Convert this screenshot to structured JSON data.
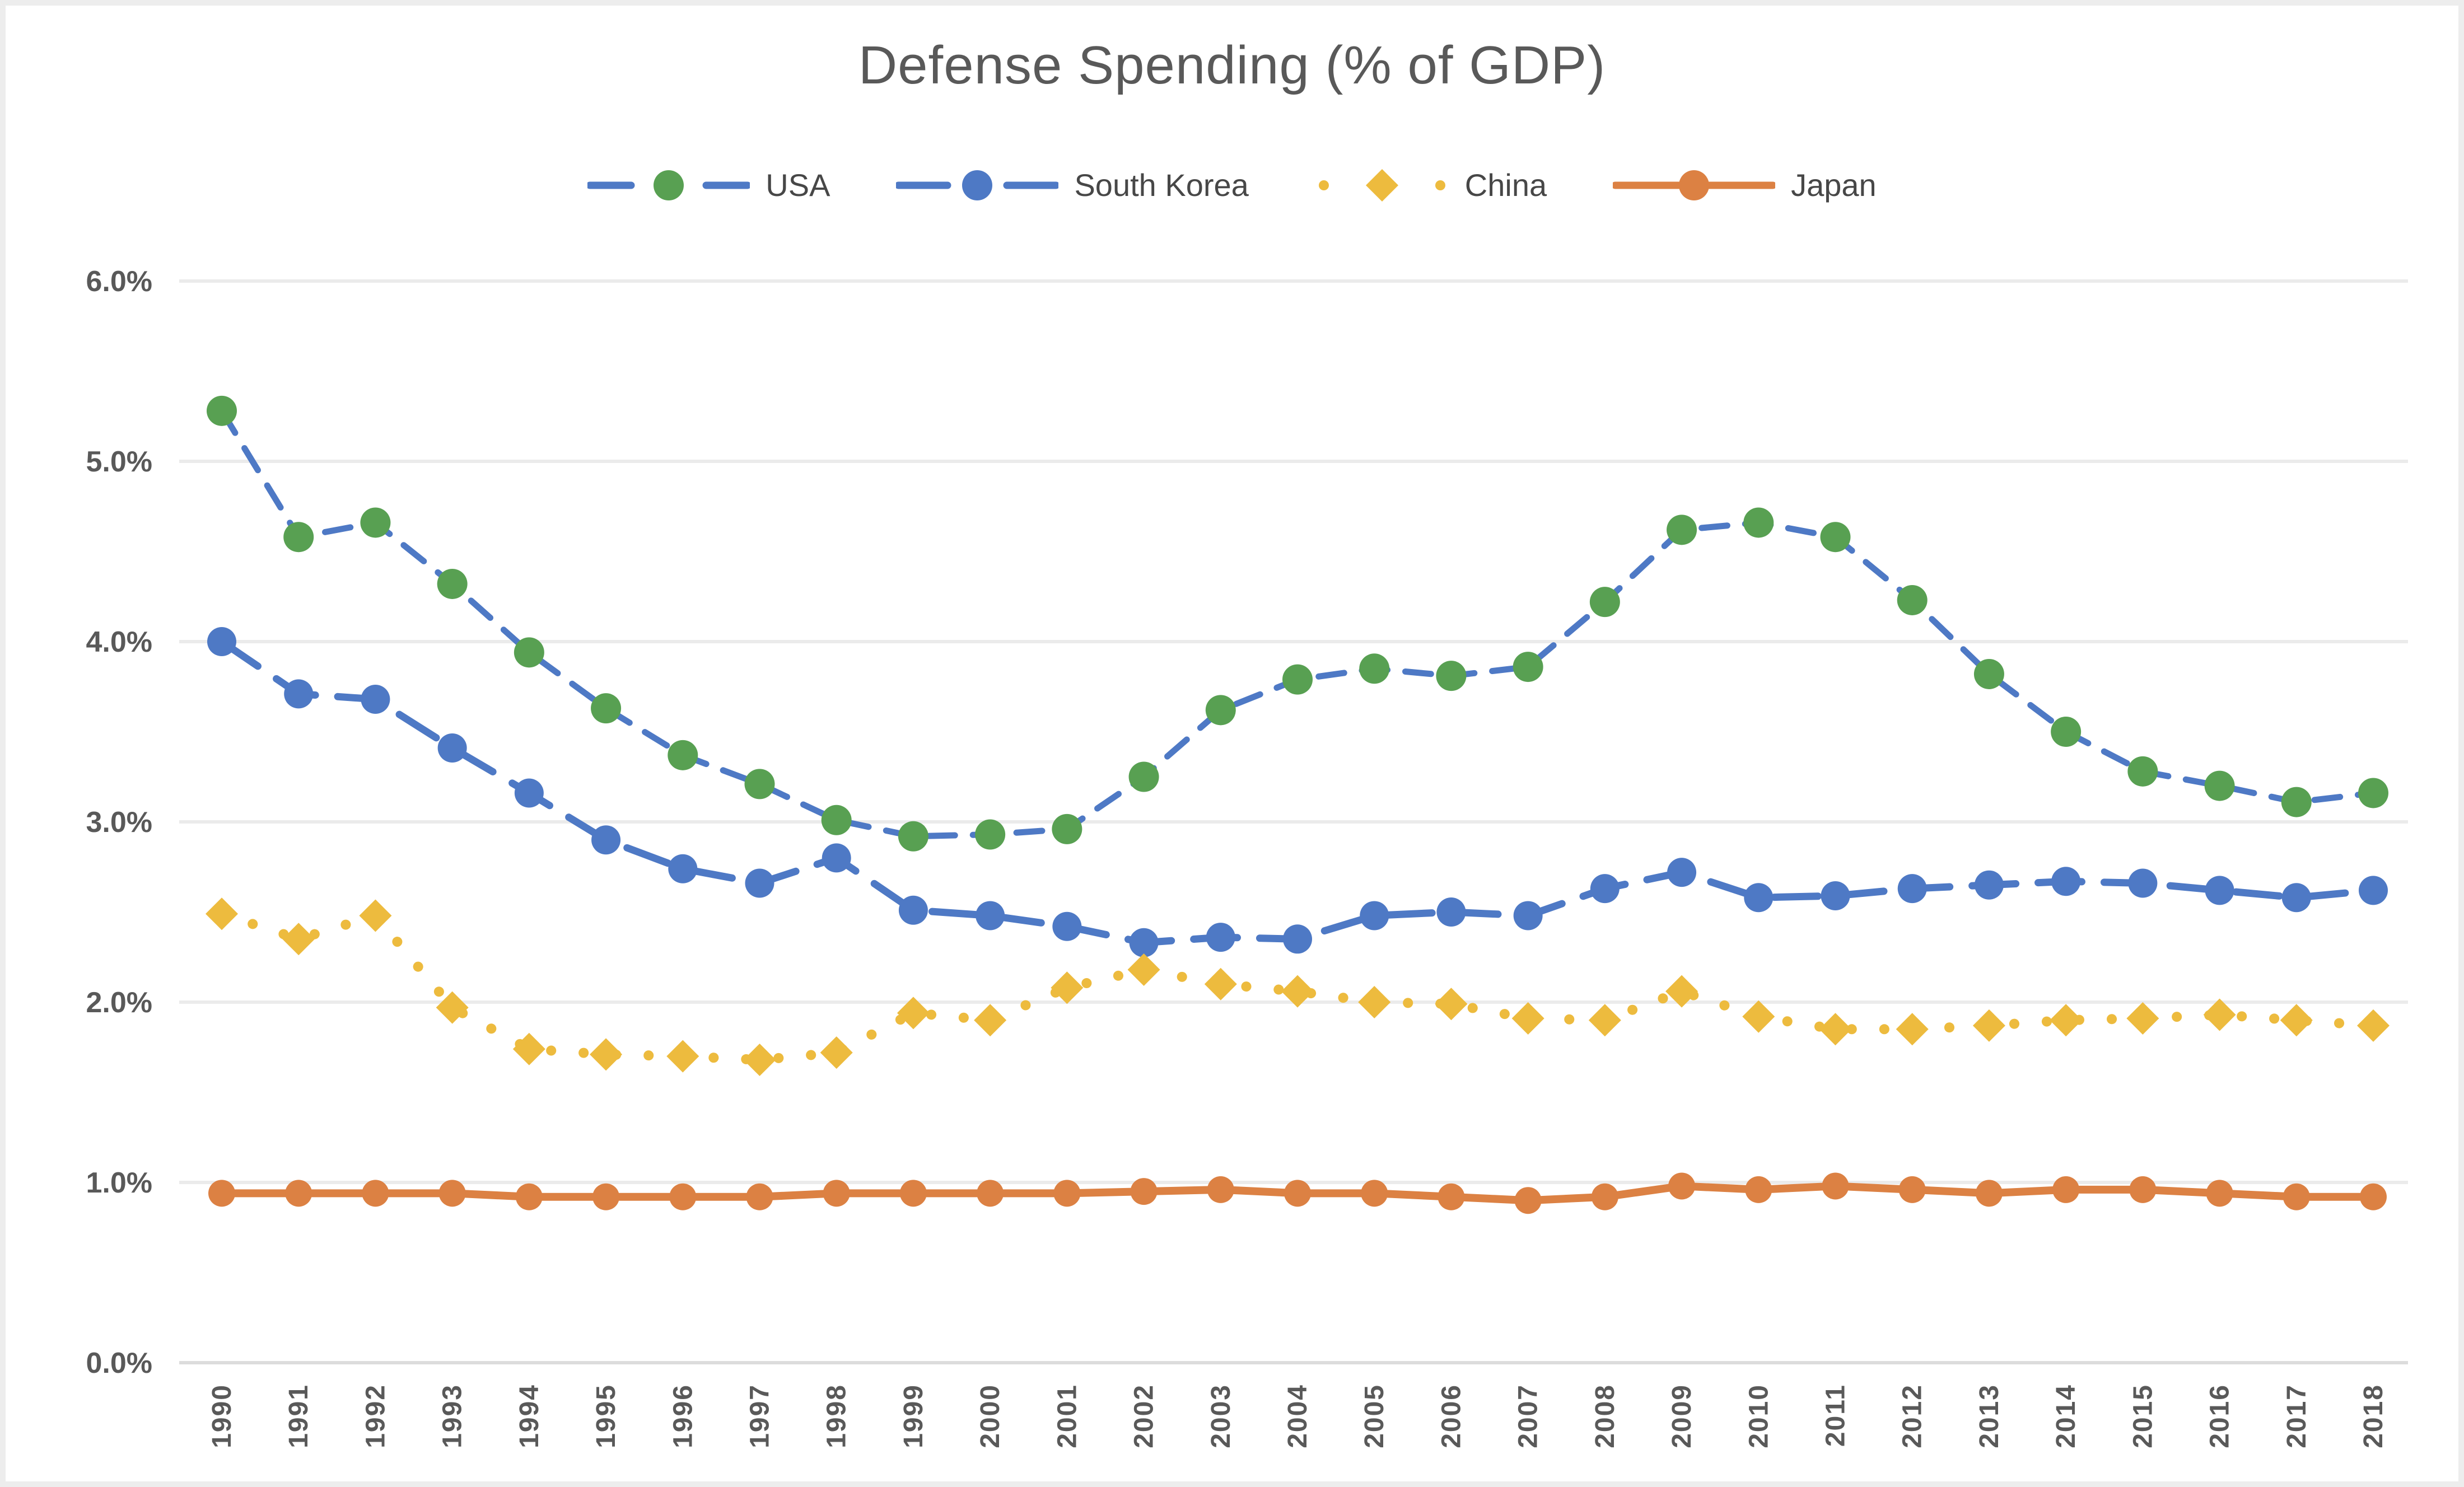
{
  "figure": {
    "title": "Defense Spending (% of GDP)"
  },
  "chart_data": {
    "type": "line",
    "title": "Defense Spending (% of GDP)",
    "x": [
      1990,
      1991,
      1992,
      1993,
      1994,
      1995,
      1996,
      1997,
      1998,
      1999,
      2000,
      2001,
      2002,
      2003,
      2004,
      2005,
      2006,
      2007,
      2008,
      2009,
      2010,
      2011,
      2012,
      2013,
      2014,
      2015,
      2016,
      2017,
      2018
    ],
    "series": [
      {
        "name": "USA",
        "line_style": "dashed",
        "line_color": "#4e79c5",
        "marker": "circle",
        "marker_color": "#58a052",
        "values": [
          5.28,
          4.58,
          4.66,
          4.32,
          3.94,
          3.63,
          3.37,
          3.21,
          3.01,
          2.92,
          2.93,
          2.96,
          3.25,
          3.62,
          3.79,
          3.85,
          3.81,
          3.86,
          4.22,
          4.62,
          4.66,
          4.58,
          4.23,
          3.82,
          3.5,
          3.28,
          3.2,
          3.11,
          3.16
        ]
      },
      {
        "name": "South Korea",
        "line_style": "long-dash",
        "line_color": "#4e79c5",
        "marker": "circle",
        "marker_color": "#4e79c5",
        "values": [
          4.0,
          3.71,
          3.68,
          3.41,
          3.16,
          2.9,
          2.74,
          2.66,
          2.8,
          2.51,
          2.48,
          2.42,
          2.33,
          2.36,
          2.35,
          2.48,
          2.5,
          2.48,
          2.63,
          2.72,
          2.58,
          2.59,
          2.63,
          2.65,
          2.67,
          2.66,
          2.62,
          2.58,
          2.62
        ]
      },
      {
        "name": "China",
        "line_style": "dotted",
        "line_color": "#edbb3e",
        "marker": "diamond",
        "marker_color": "#edbb3e",
        "values": [
          2.49,
          2.35,
          2.48,
          1.97,
          1.74,
          1.71,
          1.7,
          1.68,
          1.72,
          1.94,
          1.9,
          2.08,
          2.18,
          2.1,
          2.06,
          2.0,
          1.99,
          1.91,
          1.9,
          2.06,
          1.92,
          1.85,
          1.85,
          1.87,
          1.9,
          1.91,
          1.93,
          1.9,
          1.87
        ]
      },
      {
        "name": "Japan",
        "line_style": "solid",
        "line_color": "#dc8143",
        "marker": "circle",
        "marker_color": "#dc8143",
        "values": [
          0.94,
          0.94,
          0.94,
          0.94,
          0.92,
          0.92,
          0.92,
          0.92,
          0.94,
          0.94,
          0.94,
          0.94,
          0.95,
          0.96,
          0.94,
          0.94,
          0.92,
          0.9,
          0.92,
          0.98,
          0.96,
          0.98,
          0.96,
          0.94,
          0.96,
          0.96,
          0.94,
          0.92,
          0.92
        ]
      }
    ],
    "ylim": [
      0,
      6
    ],
    "y_tick_values": [
      0,
      1,
      2,
      3,
      4,
      5,
      6
    ],
    "y_tick_labels": [
      "0.0%",
      "1.0%",
      "2.0%",
      "3.0%",
      "4.0%",
      "5.0%",
      "6.0%"
    ],
    "grid": "horizontal",
    "grid_color": "#ebebeb",
    "axis_color": "#dcdcdc",
    "text_color": "#595959",
    "legend_position": "top",
    "xlabel": "",
    "ylabel": ""
  }
}
